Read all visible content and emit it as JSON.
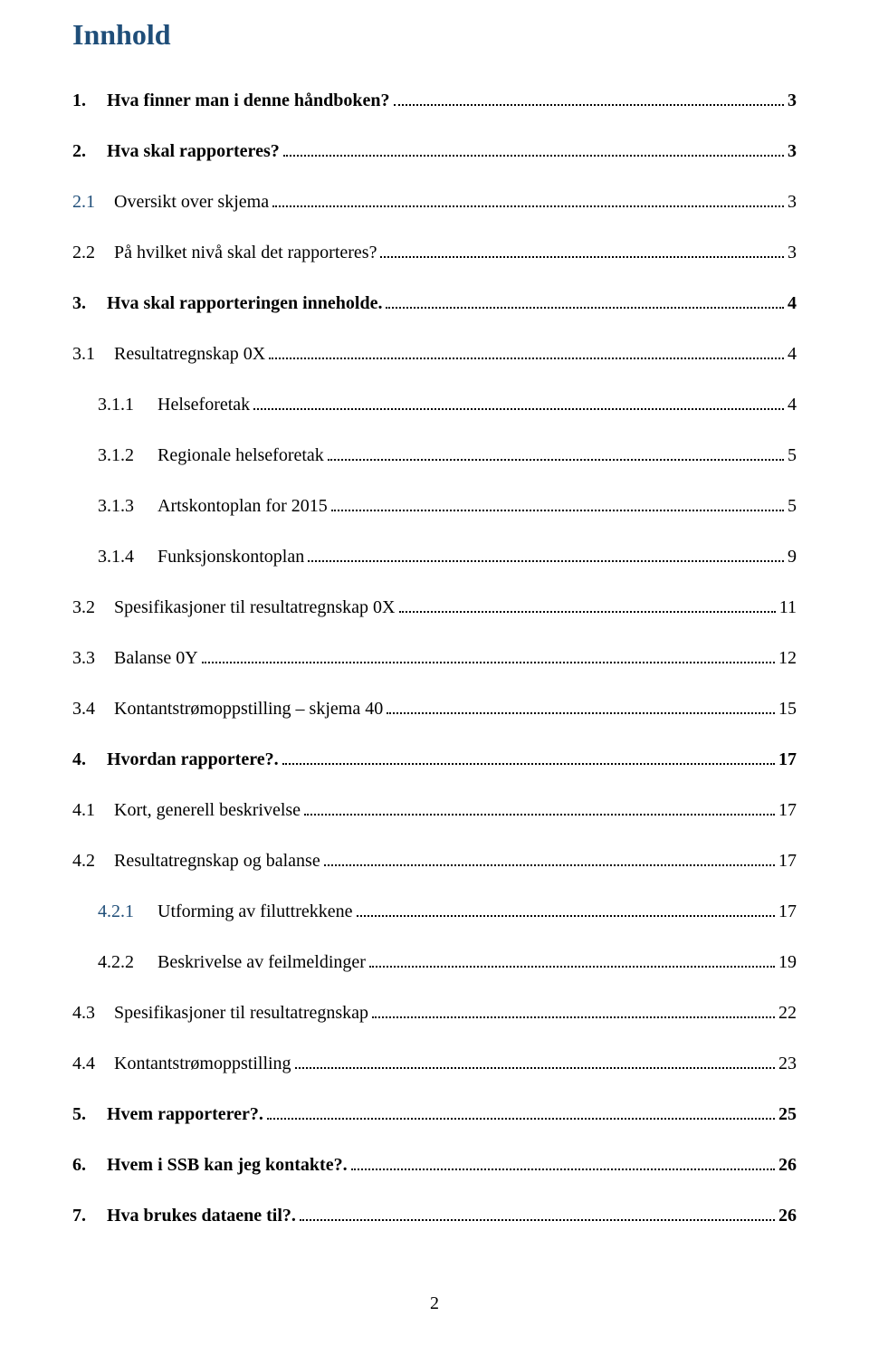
{
  "title": "Innhold",
  "title_color": "#1f4e79",
  "text_color": "#000000",
  "background_color": "#ffffff",
  "font_family": "Times New Roman",
  "title_fontsize": 32,
  "entry_fontsize": 20,
  "page_number": "2",
  "entries": [
    {
      "level": 1,
      "bold": true,
      "num": "1.",
      "text": "Hva finner man i denne håndboken?",
      "colored_num": false,
      "page": "3"
    },
    {
      "level": 1,
      "bold": true,
      "num": "2.",
      "text": "Hva skal rapporteres?",
      "colored_num": false,
      "page": "3"
    },
    {
      "level": 2,
      "bold": false,
      "num": "2.1",
      "text": "Oversikt over skjema",
      "colored_num": true,
      "page": "3"
    },
    {
      "level": 2,
      "bold": false,
      "num": "2.2",
      "text": "På hvilket nivå skal det rapporteres?",
      "colored_num": false,
      "page": "3"
    },
    {
      "level": 1,
      "bold": true,
      "num": "3.",
      "text": "Hva skal rapporteringen inneholde.",
      "colored_num": false,
      "page": "4"
    },
    {
      "level": 2,
      "bold": false,
      "num": "3.1",
      "text": "Resultatregnskap 0X",
      "colored_num": false,
      "page": "4"
    },
    {
      "level": 3,
      "bold": false,
      "num": "3.1.1",
      "text": "Helseforetak",
      "colored_num": false,
      "page": "4"
    },
    {
      "level": 3,
      "bold": false,
      "num": "3.1.2",
      "text": "Regionale helseforetak",
      "colored_num": false,
      "page": "5"
    },
    {
      "level": 3,
      "bold": false,
      "num": "3.1.3",
      "text": "Artskontoplan for 2015",
      "colored_num": false,
      "page": "5"
    },
    {
      "level": 3,
      "bold": false,
      "num": "3.1.4",
      "text": "Funksjonskontoplan",
      "colored_num": false,
      "page": "9"
    },
    {
      "level": 2,
      "bold": false,
      "num": "3.2",
      "text": "Spesifikasjoner til resultatregnskap 0X",
      "colored_num": false,
      "page": "11"
    },
    {
      "level": 2,
      "bold": false,
      "num": "3.3",
      "text": "Balanse 0Y",
      "colored_num": false,
      "page": "12"
    },
    {
      "level": 2,
      "bold": false,
      "num": "3.4",
      "text": "Kontantstrømoppstilling – skjema 40",
      "colored_num": false,
      "page": "15"
    },
    {
      "level": 1,
      "bold": true,
      "num": "4.",
      "text": "Hvordan rapportere?.",
      "colored_num": false,
      "page": "17"
    },
    {
      "level": 2,
      "bold": false,
      "num": "4.1",
      "text": "Kort, generell beskrivelse",
      "colored_num": false,
      "page": "17"
    },
    {
      "level": 2,
      "bold": false,
      "num": "4.2",
      "text": "Resultatregnskap og balanse",
      "colored_num": false,
      "page": "17"
    },
    {
      "level": 3,
      "bold": false,
      "num": "4.2.1",
      "text": "Utforming av filuttrekkene",
      "colored_num": true,
      "page": "17"
    },
    {
      "level": 3,
      "bold": false,
      "num": "4.2.2",
      "text": "Beskrivelse av feilmeldinger",
      "colored_num": false,
      "page": "19"
    },
    {
      "level": 2,
      "bold": false,
      "num": "4.3",
      "text": "Spesifikasjoner til resultatregnskap",
      "colored_num": false,
      "page": "22"
    },
    {
      "level": 2,
      "bold": false,
      "num": "4.4",
      "text": "Kontantstrømoppstilling",
      "colored_num": false,
      "page": "23"
    },
    {
      "level": 1,
      "bold": true,
      "num": "5.",
      "text": "Hvem rapporterer?.",
      "colored_num": false,
      "page": "25"
    },
    {
      "level": 1,
      "bold": true,
      "num": "6.",
      "text": "Hvem i SSB kan jeg kontakte?.",
      "colored_num": false,
      "page": "26"
    },
    {
      "level": 1,
      "bold": true,
      "num": "7.",
      "text": "Hva brukes dataene til?.",
      "colored_num": false,
      "page": "26"
    }
  ]
}
